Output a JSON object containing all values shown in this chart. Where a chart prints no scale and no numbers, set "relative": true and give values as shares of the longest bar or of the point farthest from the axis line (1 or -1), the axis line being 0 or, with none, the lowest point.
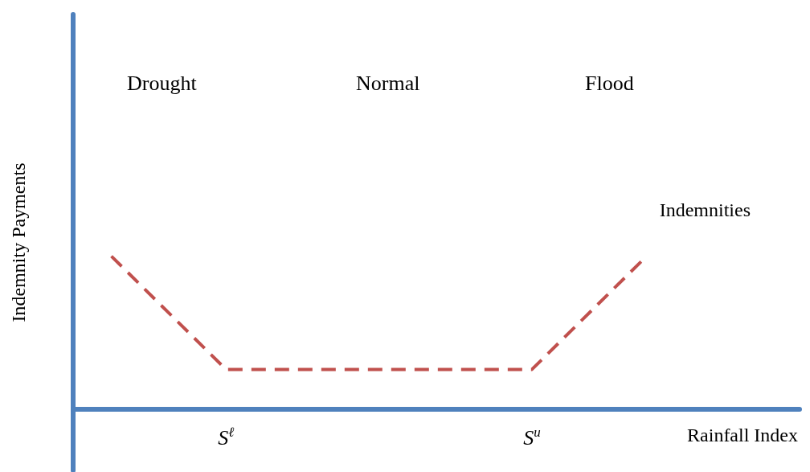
{
  "chart_data": {
    "type": "line",
    "relative": true,
    "xlabel": "Rainfall Index",
    "ylabel": "Indemnity Payments",
    "annotations": [
      "Drought",
      "Normal",
      "Flood"
    ],
    "categories": [
      null,
      null,
      null,
      null,
      "S$^{ℓ}$",
      null,
      null,
      null,
      null,
      null,
      null,
      null,
      "S$^{u}$",
      null,
      null,
      null,
      null,
      null,
      null,
      null
    ],
    "series": [
      {
        "name": "Indemnities",
        "color": "#c0504d",
        "values": [
          null,
          1,
          null,
          null,
          0.26,
          null,
          null,
          null,
          null,
          null,
          null,
          null,
          0.26,
          null,
          null,
          1,
          null,
          null,
          null,
          null
        ]
      }
    ],
    "line_style": "dashed",
    "marker": "none",
    "grid": false,
    "legend": false
  }
}
